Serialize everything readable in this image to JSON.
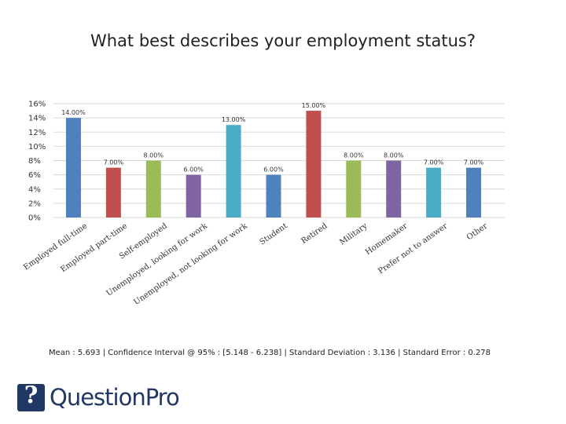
{
  "chart_data": {
    "type": "bar",
    "title": "What best describes your employment status?",
    "categories": [
      "Employed full-time",
      "Employed part-time",
      "Self-employed",
      "Unemployed, looking for work",
      "Unemployed, not looking for work",
      "Student",
      "Retired",
      "Military",
      "Homemaker",
      "Prefer not to answer",
      "Other"
    ],
    "values": [
      14,
      7,
      8,
      6,
      13,
      6,
      15,
      8,
      8,
      7,
      7
    ],
    "data_labels": [
      "14.00%",
      "7.00%",
      "8.00%",
      "6.00%",
      "13.00%",
      "6.00%",
      "15.00%",
      "8.00%",
      "8.00%",
      "7.00%",
      "7.00%"
    ],
    "colors": [
      "#4f81bd",
      "#c0504d",
      "#9bbb59",
      "#8064a2",
      "#4bacc6",
      "#4f81bd",
      "#c0504d",
      "#9bbb59",
      "#8064a2",
      "#4bacc6",
      "#4f81bd"
    ],
    "y_ticks": [
      "0%",
      "2%",
      "4%",
      "6%",
      "8%",
      "10%",
      "12%",
      "14%",
      "16%"
    ],
    "ylim": [
      0,
      16
    ],
    "grid": true,
    "legend": "none"
  },
  "stats": {
    "text": "Mean : 5.693  |  Confidence Interval @ 95% : [5.148 - 6.238]  |  Standard Deviation : 3.136  |  Standard Error : 0.278"
  },
  "brand": {
    "name": "QuestionPro",
    "color": "#1f3864"
  }
}
